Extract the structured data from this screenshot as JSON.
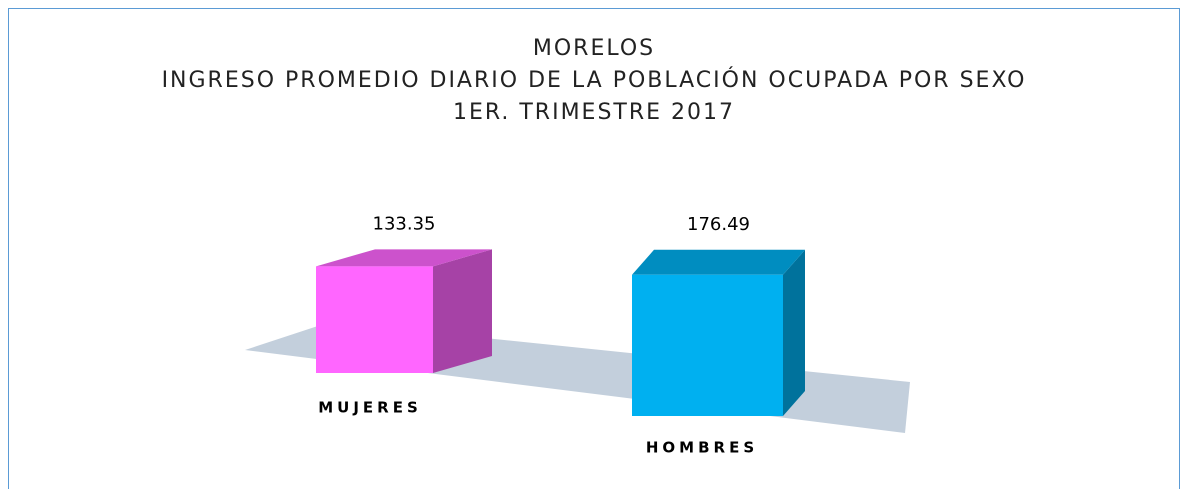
{
  "chart_data": {
    "type": "bar3d",
    "title": [
      "MORELOS",
      "INGRESO PROMEDIO DIARIO DE LA POBLACIÓN OCUPADA POR SEXO",
      "1ER. TRIMESTRE 2017"
    ],
    "categories": [
      "MUJERES",
      "HOMBRES"
    ],
    "values": [
      133.35,
      176.49
    ],
    "colors": [
      "#ff66ff",
      "#00b0f0"
    ]
  }
}
